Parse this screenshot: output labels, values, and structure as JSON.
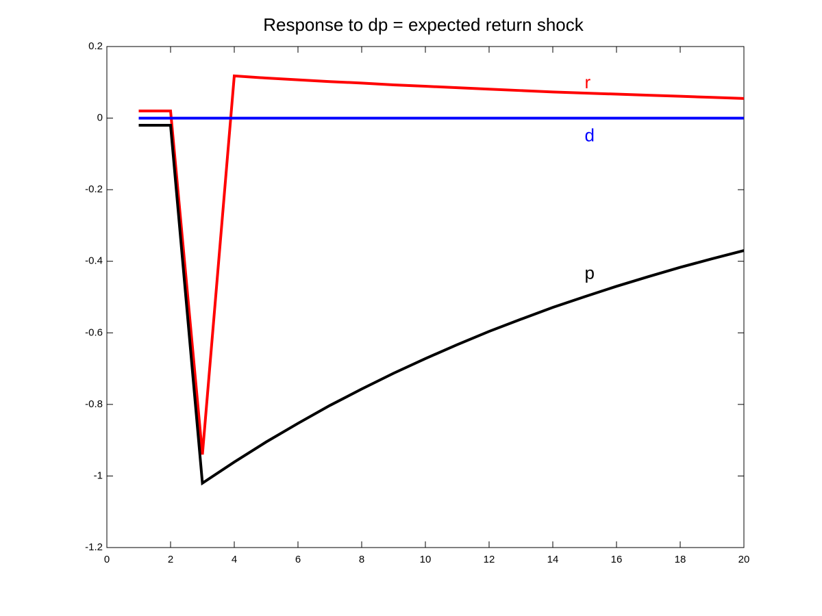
{
  "chart_data": {
    "type": "line",
    "title": "Response to dp = expected return shock",
    "x": [
      1,
      2,
      3,
      4,
      5,
      6,
      7,
      8,
      9,
      10,
      11,
      12,
      13,
      14,
      15,
      16,
      17,
      18,
      19,
      20
    ],
    "series": [
      {
        "name": "r",
        "color": "#ff0000",
        "values": [
          0.02,
          0.02,
          -0.94,
          0.118,
          0.112,
          0.107,
          0.102,
          0.098,
          0.093,
          0.089,
          0.085,
          0.081,
          0.077,
          0.073,
          0.07,
          0.067,
          0.064,
          0.061,
          0.058,
          0.055
        ]
      },
      {
        "name": "d",
        "color": "#0000ff",
        "values": [
          0,
          0,
          0,
          0,
          0,
          0,
          0,
          0,
          0,
          0,
          0,
          0,
          0,
          0,
          0,
          0,
          0,
          0,
          0,
          0
        ]
      },
      {
        "name": "p",
        "color": "#000000",
        "values": [
          -0.02,
          -0.02,
          -1.02,
          -0.961,
          -0.905,
          -0.853,
          -0.803,
          -0.757,
          -0.713,
          -0.672,
          -0.633,
          -0.596,
          -0.562,
          -0.529,
          -0.499,
          -0.47,
          -0.443,
          -0.417,
          -0.393,
          -0.37
        ]
      }
    ],
    "xlim": [
      0,
      20
    ],
    "xticks": [
      0,
      2,
      4,
      6,
      8,
      10,
      12,
      14,
      16,
      18,
      20
    ],
    "ylim": [
      -1.2,
      0.2
    ],
    "yticks": [
      0.2,
      0,
      -0.2,
      -0.4,
      -0.6,
      -0.8,
      -1,
      -1.2
    ]
  }
}
